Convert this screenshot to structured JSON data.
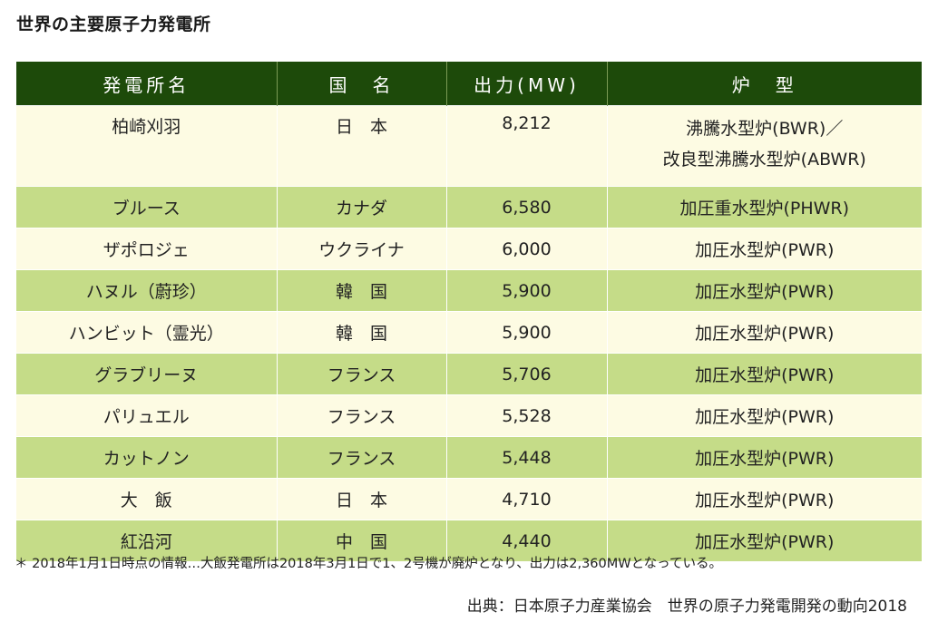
{
  "title": "世界の主要原子力発電所",
  "table": {
    "headers": [
      "発電所名",
      "国　名",
      "出力(MW)",
      "炉　型"
    ],
    "rows": [
      {
        "name": "柏崎刈羽",
        "country": "日　本",
        "output": "8,212",
        "type_line1": "沸騰水型炉(BWR)／",
        "type_line2": "改良型沸騰水型炉(ABWR)"
      },
      {
        "name": "ブルース",
        "country": "カナダ",
        "output": "6,580",
        "type_line1": "加圧重水型炉(PHWR)"
      },
      {
        "name": "ザポロジェ",
        "country": "ウクライナ",
        "output": "6,000",
        "type_line1": "加圧水型炉(PWR)"
      },
      {
        "name": "ハヌル（蔚珍）",
        "country": "韓　国",
        "output": "5,900",
        "type_line1": "加圧水型炉(PWR)"
      },
      {
        "name": "ハンビット（霊光）",
        "country": "韓　国",
        "output": "5,900",
        "type_line1": "加圧水型炉(PWR)"
      },
      {
        "name": "グラブリーヌ",
        "country": "フランス",
        "output": "5,706",
        "type_line1": "加圧水型炉(PWR)"
      },
      {
        "name": "パリュエル",
        "country": "フランス",
        "output": "5,528",
        "type_line1": "加圧水型炉(PWR)"
      },
      {
        "name": "カットノン",
        "country": "フランス",
        "output": "5,448",
        "type_line1": "加圧水型炉(PWR)"
      },
      {
        "name": "大　飯",
        "country": "日　本",
        "output": "4,710",
        "type_line1": "加圧水型炉(PWR)"
      },
      {
        "name": "紅沿河",
        "country": "中　国",
        "output": "4,440",
        "type_line1": "加圧水型炉(PWR)"
      }
    ]
  },
  "note": "＊ 2018年1月1日時点の情報…大飯発電所は2018年3月1日で1、2号機が廃炉となり、出力は2,360MWとなっている。",
  "source": "出典：日本原子力産業協会　世界の原子力発電開発の動向2018"
}
